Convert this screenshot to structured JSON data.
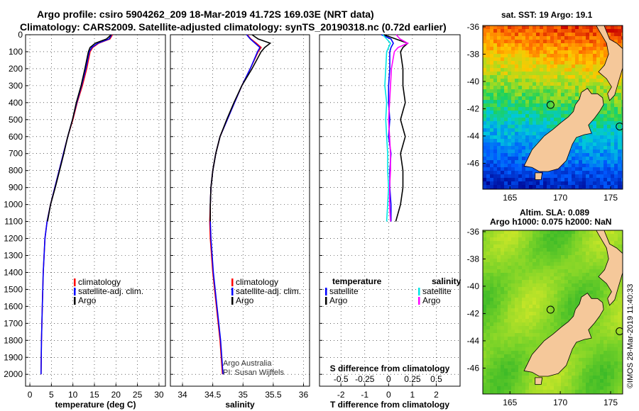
{
  "header": {
    "line1": "Argo profile: csiro 5904262_209 18-Mar-2019 41.72S 169.03E (NRT data)",
    "line2": "Climatology: CARS2009. Satellite-adjusted climatology: synTS_20190318.nc (0.72d earlier)"
  },
  "colors": {
    "climatology": "#ff0000",
    "satellite": "#0000ff",
    "argo": "#000000",
    "sat_salt": "#00e5e5",
    "clim_salt": "#ff00ff",
    "land": "#f5c89a"
  },
  "chart_data": [
    {
      "type": "line",
      "name": "temperature",
      "xlabel": "temperature (deg C)",
      "ylabel": "",
      "xlim": [
        -1,
        31.5
      ],
      "ylim": [
        2070,
        0
      ],
      "xticks": [
        0,
        5,
        10,
        15,
        20,
        25,
        30
      ],
      "yticks": [
        0,
        100,
        200,
        300,
        400,
        500,
        600,
        700,
        800,
        900,
        1000,
        1100,
        1200,
        1300,
        1400,
        1500,
        1600,
        1700,
        1800,
        1900,
        2000
      ],
      "grid": true,
      "legend_placement": "lower-right",
      "series": [
        {
          "name": "climatology",
          "color_key": "climatology",
          "x": [
            19.2,
            18.6,
            16.0,
            14.6,
            14.0,
            13.2,
            12.2,
            11.0,
            10.0,
            8.8,
            7.8,
            6.8,
            5.8,
            4.8,
            4.0,
            3.5,
            3.1,
            2.9,
            2.7,
            2.6
          ],
          "y": [
            0,
            25,
            50,
            75,
            100,
            200,
            300,
            400,
            500,
            600,
            700,
            800,
            900,
            1000,
            1100,
            1200,
            1400,
            1600,
            1800,
            2000
          ]
        },
        {
          "name": "satellite-adj. clim.",
          "color_key": "satellite",
          "x": [
            19.0,
            18.4,
            15.8,
            14.4,
            13.8,
            13.0,
            12.0,
            10.9,
            9.9,
            8.8,
            7.8,
            6.8,
            5.8,
            4.8,
            4.0,
            3.5,
            3.1,
            2.9,
            2.7,
            2.6
          ],
          "y": [
            0,
            25,
            50,
            75,
            100,
            200,
            300,
            400,
            500,
            600,
            700,
            800,
            900,
            1000,
            1100,
            1200,
            1400,
            1600,
            1800,
            2000
          ]
        },
        {
          "name": "Argo",
          "color_key": "argo",
          "x": [
            18.9,
            17.8,
            15.2,
            14.0,
            13.6,
            12.8,
            11.9,
            10.8,
            9.9,
            8.8,
            7.9,
            6.9,
            5.9,
            4.8,
            4.1
          ],
          "y": [
            0,
            25,
            50,
            75,
            100,
            200,
            300,
            400,
            500,
            600,
            700,
            800,
            900,
            1000,
            1100
          ]
        }
      ]
    },
    {
      "type": "line",
      "name": "salinity",
      "xlabel": "salinity",
      "ylabel": "",
      "xlim": [
        33.8,
        36.1
      ],
      "ylim": [
        2070,
        0
      ],
      "xticks": [
        34,
        34.5,
        35,
        35.5,
        36
      ],
      "xtick_labels": [
        "34",
        "34.5",
        "35",
        "35.5",
        "36"
      ],
      "grid": true,
      "legend_placement": "lower-right",
      "credit_lines": [
        "Argo Australia",
        "PI: Susan Wijffels"
      ],
      "series": [
        {
          "name": "climatology",
          "color_key": "climatology",
          "x": [
            35.07,
            35.13,
            35.22,
            35.3,
            35.25,
            35.12,
            34.98,
            34.86,
            34.74,
            34.62,
            34.55,
            34.5,
            34.47,
            34.46,
            34.45,
            34.46,
            34.5,
            34.56,
            34.62,
            34.66
          ],
          "y": [
            0,
            25,
            50,
            75,
            100,
            200,
            300,
            400,
            500,
            600,
            700,
            800,
            900,
            1000,
            1100,
            1200,
            1400,
            1600,
            1800,
            2000
          ]
        },
        {
          "name": "satellite-adj. clim.",
          "color_key": "satellite",
          "x": [
            35.06,
            35.12,
            35.2,
            35.28,
            35.24,
            35.12,
            34.98,
            34.86,
            34.74,
            34.62,
            34.55,
            34.5,
            34.47,
            34.46,
            34.46,
            34.47,
            34.51,
            34.57,
            34.63,
            34.67
          ],
          "y": [
            0,
            25,
            50,
            75,
            100,
            200,
            300,
            400,
            500,
            600,
            700,
            800,
            900,
            1000,
            1100,
            1200,
            1400,
            1600,
            1800,
            2000
          ]
        },
        {
          "name": "Argo",
          "color_key": "argo",
          "x": [
            35.15,
            35.25,
            35.45,
            35.36,
            35.3,
            35.15,
            34.98,
            34.85,
            34.73,
            34.62,
            34.55,
            34.5,
            34.47,
            34.46,
            34.46
          ],
          "y": [
            0,
            25,
            50,
            75,
            100,
            200,
            300,
            400,
            500,
            600,
            700,
            800,
            900,
            1000,
            1100
          ]
        }
      ]
    },
    {
      "type": "line",
      "name": "difference",
      "xlabel": "T difference from climatology",
      "top_axis_label": "S difference from climatology",
      "ylabel": "",
      "xlim": [
        -2.9,
        3.0
      ],
      "ylim": [
        2070,
        0
      ],
      "xticks": [
        -2,
        -1,
        0,
        1,
        2
      ],
      "s_ticks": [
        -0.5,
        -0.25,
        0,
        0.25,
        0.5
      ],
      "s_tick_labels": [
        "-0.5",
        "-0.25",
        "0",
        "0.25",
        "0.5"
      ],
      "grid": true,
      "legend": {
        "temperature_heading": "temperature",
        "salinity_heading": "salinity",
        "temperature_items": [
          "satellite",
          "Argo"
        ],
        "salinity_items": [
          "satellite",
          "Argo"
        ]
      },
      "series": [
        {
          "name": "temperature satellite",
          "color_key": "satellite",
          "x": [
            -0.3,
            0.1,
            0.2,
            0.1,
            0.05,
            0.05,
            0.0,
            0.0,
            0.05,
            0.0,
            0.1,
            0.05,
            0.05,
            0.1,
            0.1
          ],
          "y": [
            0,
            25,
            50,
            75,
            100,
            200,
            300,
            400,
            500,
            600,
            700,
            800,
            900,
            1000,
            1100
          ]
        },
        {
          "name": "temperature Argo",
          "color_key": "argo",
          "x": [
            -0.2,
            0.3,
            0.8,
            0.6,
            0.5,
            0.6,
            0.6,
            0.7,
            0.5,
            0.7,
            0.5,
            0.6,
            0.6,
            0.5,
            0.3
          ],
          "y": [
            0,
            25,
            50,
            75,
            100,
            200,
            300,
            400,
            500,
            600,
            700,
            800,
            900,
            1000,
            1100
          ]
        },
        {
          "name": "salinity satellite",
          "color_key": "sat_salt",
          "x": [
            -0.06,
            -0.02,
            0.02,
            0.0,
            -0.02,
            -0.03,
            -0.04,
            -0.02,
            -0.03,
            -0.02,
            -0.01,
            -0.01,
            0.0,
            -0.01,
            -0.02
          ],
          "y": [
            0,
            25,
            50,
            75,
            100,
            200,
            300,
            400,
            500,
            600,
            700,
            800,
            900,
            1000,
            1100
          ]
        },
        {
          "name": "salinity Argo",
          "color_key": "clim_salt",
          "x": [
            0.08,
            0.12,
            0.2,
            0.1,
            0.06,
            0.03,
            0.02,
            0.01,
            0.0,
            0.01,
            0.02,
            0.02,
            0.01,
            0.01,
            0.02
          ],
          "y": [
            0,
            25,
            50,
            75,
            100,
            200,
            300,
            400,
            500,
            600,
            700,
            800,
            900,
            1000,
            1100
          ]
        }
      ]
    },
    {
      "type": "heatmap",
      "name": "sst-map",
      "title": "sat. SST: 19 Argo: 19.1",
      "xlim": [
        162.3,
        176.2
      ],
      "ylim": [
        -47.9,
        -35.9
      ],
      "xticks": [
        165,
        170,
        175
      ],
      "yticks": [
        -36,
        -38,
        -40,
        -42,
        -44,
        -46
      ],
      "float_position": {
        "lon": 169.03,
        "lat": -41.72
      }
    },
    {
      "type": "heatmap",
      "name": "sla-map",
      "title": "Altim. SLA: 0.089",
      "subtitle": "Argo h1000: 0.075 h2000: NaN",
      "xlim": [
        162.3,
        176.2
      ],
      "ylim": [
        -47.9,
        -35.9
      ],
      "xticks": [
        165,
        170,
        175
      ],
      "yticks": [
        -36,
        -38,
        -40,
        -42,
        -44,
        -46
      ],
      "float_position": {
        "lon": 169.03,
        "lat": -41.72
      }
    }
  ],
  "credit": "©IMOS 28-Mar-2019 11:40:33"
}
